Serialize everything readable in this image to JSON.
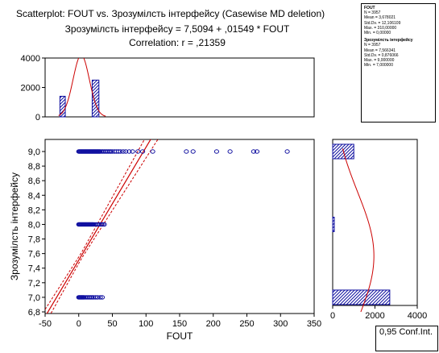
{
  "header": {
    "title_line1": "Scatterplot: FOUT     vs.  Зрозумілсть інтерфейсу   (Casewise MD deletion)",
    "title_line2": "Зрозумілсть інтерфейсу = 7,5094 + ,01549 * FOUT",
    "title_line3": "Correlation: r = ,21359"
  },
  "stats": {
    "var1": {
      "name": "FOUT",
      "lines": [
        "N = 3957",
        "Mean = 3,678021",
        "Std.Dv. = 12,106109",
        "Max. = 310,00000",
        "Min. = 0,00000"
      ]
    },
    "var2": {
      "name": "Зрозумілсть інтерфейсу",
      "lines": [
        "N = 3957",
        "Mean = 7,566341",
        "Std.Dv. = 0,876066",
        "Max. = 9,000000",
        "Min. = 7,000000"
      ]
    }
  },
  "legend": {
    "conf_label": "0,95 Conf.Int."
  },
  "colors": {
    "points": "#1010a0",
    "bars": "#1010a0",
    "fit_line": "#cc0000"
  },
  "chart_data": {
    "type": "scatter",
    "xlabel": "FOUT",
    "ylabel": "Зрозумілсть інтерфейсу",
    "xlim": [
      -50,
      350
    ],
    "ylim": [
      6.8,
      9.0
    ],
    "x_ticks": [
      "-50",
      "0",
      "50",
      "100",
      "150",
      "200",
      "250",
      "300",
      "350"
    ],
    "y_ticks": [
      "6,8",
      "7,0",
      "7,2",
      "7,4",
      "7,6",
      "7,8",
      "8,0",
      "8,2",
      "8,4",
      "8,6",
      "8,8",
      "9,0"
    ],
    "regression": {
      "intercept": 7.5094,
      "slope": 0.01549,
      "r": 0.21359
    },
    "points_y9": [
      0,
      1,
      2,
      3,
      4,
      5,
      6,
      7,
      8,
      9,
      10,
      11,
      12,
      13,
      14,
      15,
      16,
      17,
      18,
      19,
      20,
      21,
      22,
      23,
      24,
      25,
      26,
      27,
      28,
      29,
      30,
      31,
      32,
      34,
      36,
      38,
      40,
      42,
      44,
      46,
      48,
      50,
      53,
      56,
      59,
      62,
      66,
      70,
      75,
      80,
      88,
      95,
      110,
      160,
      170,
      205,
      225,
      260,
      265,
      310
    ],
    "points_y8": [
      0,
      1,
      2,
      3,
      4,
      5,
      6,
      7,
      8,
      9,
      10,
      11,
      12,
      13,
      14,
      15,
      16,
      17,
      18,
      19,
      20,
      21,
      22,
      24,
      26,
      28,
      30,
      32,
      34,
      36,
      38
    ],
    "points_y7": [
      0,
      1,
      2,
      3,
      4,
      5,
      6,
      7,
      8,
      10,
      12,
      14,
      16,
      18,
      20,
      22,
      25,
      28,
      32,
      35
    ],
    "top_hist": {
      "ylim": [
        0,
        4000
      ],
      "y_ticks": [
        "0",
        "2000",
        "4000"
      ],
      "bars": [
        {
          "x_from": -28,
          "x_to": -20,
          "count": 1400
        },
        {
          "x_from": 20,
          "x_to": 30,
          "count": 2500
        }
      ]
    },
    "right_hist": {
      "xlim": [
        0,
        4000
      ],
      "x_ticks": [
        "0",
        "2000",
        "4000"
      ],
      "bars": [
        {
          "y": 9.0,
          "count": 1000
        },
        {
          "y": 8.0,
          "count": 60
        },
        {
          "y": 7.0,
          "count": 2700
        }
      ]
    }
  }
}
